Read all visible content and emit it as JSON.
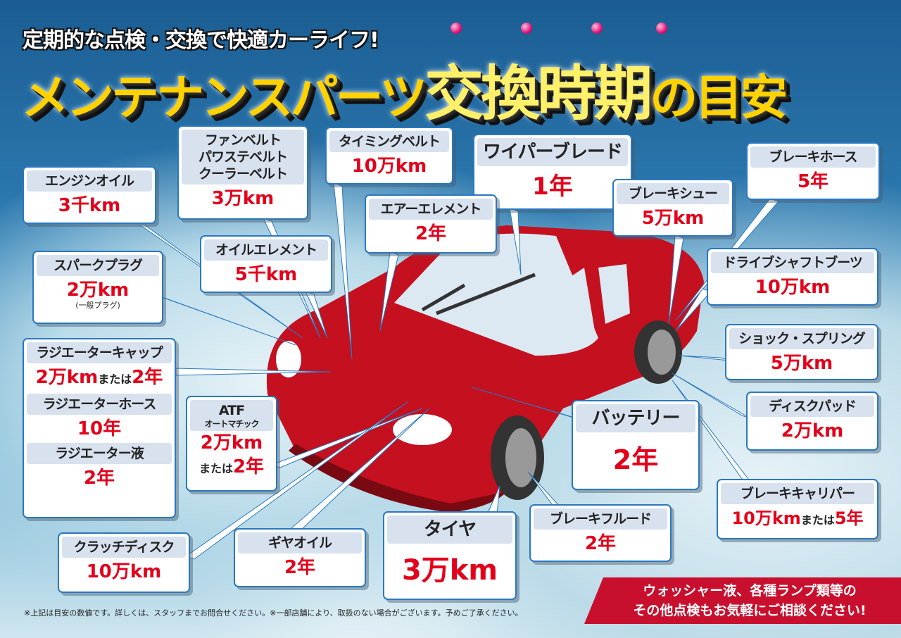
{
  "header": {
    "subtitle": "定期的な点検・交換で快適カーライフ!",
    "title_part1": "メンテナンスパーツ",
    "title_part2": "交換時期",
    "title_part3": "の目安"
  },
  "colors": {
    "value_red": "#e3001b",
    "box_border": "#2a78c0",
    "label_bg": "#d8e1ee",
    "title_yellow": "#ffd200",
    "banner_red": "#c8102e"
  },
  "parts": [
    {
      "label": "エンジンオイル",
      "value": "3千km"
    },
    {
      "label": "ファンベルト\nパワステベルト\nクーラーベルト",
      "value": "3万km"
    },
    {
      "label": "タイミングベルト",
      "value": "10万km"
    },
    {
      "label": "ワイパーブレード",
      "value": "1年"
    },
    {
      "label": "ブレーキホース",
      "value": "5年"
    },
    {
      "label": "ブレーキシュー",
      "value": "5万km"
    },
    {
      "label": "エアーエレメント",
      "value": "2年"
    },
    {
      "label": "オイルエレメント",
      "value": "5千km"
    },
    {
      "label": "スパークプラグ",
      "value": "2万km",
      "note": "(一般プラグ)"
    },
    {
      "label": "ドライブシャフトブーツ",
      "value": "10万km"
    },
    {
      "label": "ショック・スプリング",
      "value": "5万km"
    },
    {
      "label": "ディスクパッド",
      "value": "2万km"
    },
    {
      "label": "ATF",
      "sublabel": "オートマチック",
      "value": "2万km",
      "or": "または",
      "value2": "2年"
    },
    {
      "label": "バッテリー",
      "value": "2年"
    },
    {
      "label": "ブレーキキャリパー",
      "value": "10万km",
      "or": "または",
      "value2": "5年"
    },
    {
      "label": "ブレーキフルード",
      "value": "2年"
    },
    {
      "label": "タイヤ",
      "value": "3万km"
    },
    {
      "label": "ギヤオイル",
      "value": "2年"
    },
    {
      "label": "クラッチディスク",
      "value": "10万km"
    }
  ],
  "radiator": [
    {
      "label": "ラジエーターキャップ",
      "value": "2万km",
      "or": "または",
      "value2": "2年"
    },
    {
      "label": "ラジエーターホース",
      "value": "10年"
    },
    {
      "label": "ラジエーター液",
      "value": "2年"
    }
  ],
  "footer": {
    "note": "※上記は目安の数値です。詳しくは、スタッフまでお問合せください。※一部店舗により、取扱のない場合がございます。予めご了承ください。",
    "banner_line1": "ウォッシャー液、各種ランプ類等の",
    "banner_line2": "その他点検もお気軽にご相談ください!"
  }
}
